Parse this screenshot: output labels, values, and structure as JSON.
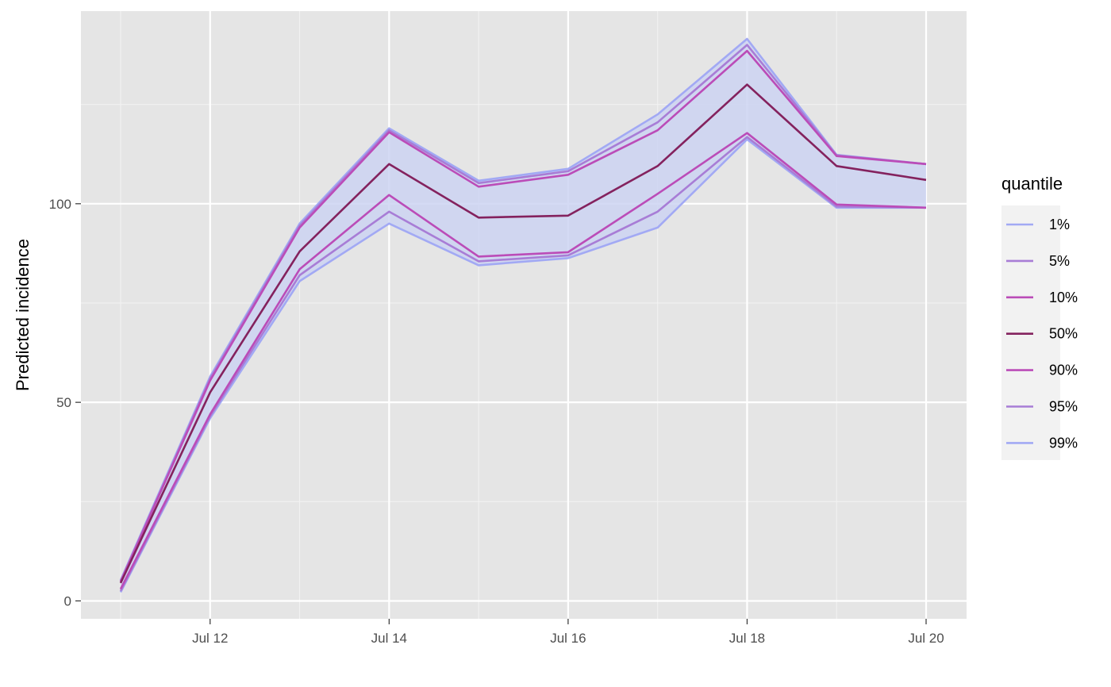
{
  "chart_data": {
    "type": "line",
    "title": "",
    "xlabel": "",
    "ylabel": "Predicted incidence",
    "x": [
      "Jul 11",
      "Jul 12",
      "Jul 13",
      "Jul 14",
      "Jul 15",
      "Jul 16",
      "Jul 17",
      "Jul 18",
      "Jul 19",
      "Jul 20"
    ],
    "x_ticks": [
      "Jul 12",
      "Jul 14",
      "Jul 16",
      "Jul 18",
      "Jul 20"
    ],
    "y_ticks": [
      "0",
      "50",
      "100"
    ],
    "ylim": [
      -4.5,
      148.5
    ],
    "grid": true,
    "legend_title": "quantile",
    "legend_position": "right",
    "band": {
      "lower": "1%",
      "upper": "99%",
      "color": "#cdd3f2"
    },
    "series": [
      {
        "name": "1%",
        "color": "#a2a9f4",
        "values": [
          2.2,
          46.0,
          80.5,
          95.0,
          84.5,
          86.3,
          94.0,
          116.2,
          99.0,
          99.0
        ]
      },
      {
        "name": "5%",
        "color": "#a87dd6",
        "values": [
          2.5,
          46.5,
          82.0,
          98.0,
          85.5,
          87.0,
          98.0,
          116.8,
          99.3,
          99.0
        ]
      },
      {
        "name": "10%",
        "color": "#bb4cb8",
        "values": [
          3.0,
          47.0,
          83.5,
          102.2,
          86.7,
          87.8,
          102.5,
          117.8,
          99.8,
          99.0
        ]
      },
      {
        "name": "50%",
        "color": "#84225e",
        "values": [
          4.5,
          52.5,
          88.0,
          110.0,
          96.5,
          97.0,
          109.5,
          130.0,
          109.5,
          106.0
        ]
      },
      {
        "name": "90%",
        "color": "#bb4cb8",
        "values": [
          4.8,
          55.5,
          94.0,
          118.0,
          104.3,
          107.3,
          118.5,
          138.5,
          112.0,
          110.0
        ]
      },
      {
        "name": "95%",
        "color": "#a87dd6",
        "values": [
          5.0,
          56.0,
          94.5,
          118.5,
          105.2,
          108.2,
          120.5,
          140.0,
          112.2,
          110.0
        ]
      },
      {
        "name": "99%",
        "color": "#a2a9f4",
        "values": [
          5.2,
          56.5,
          95.0,
          119.0,
          105.8,
          108.8,
          122.5,
          141.5,
          112.3,
          110.0
        ]
      }
    ]
  }
}
